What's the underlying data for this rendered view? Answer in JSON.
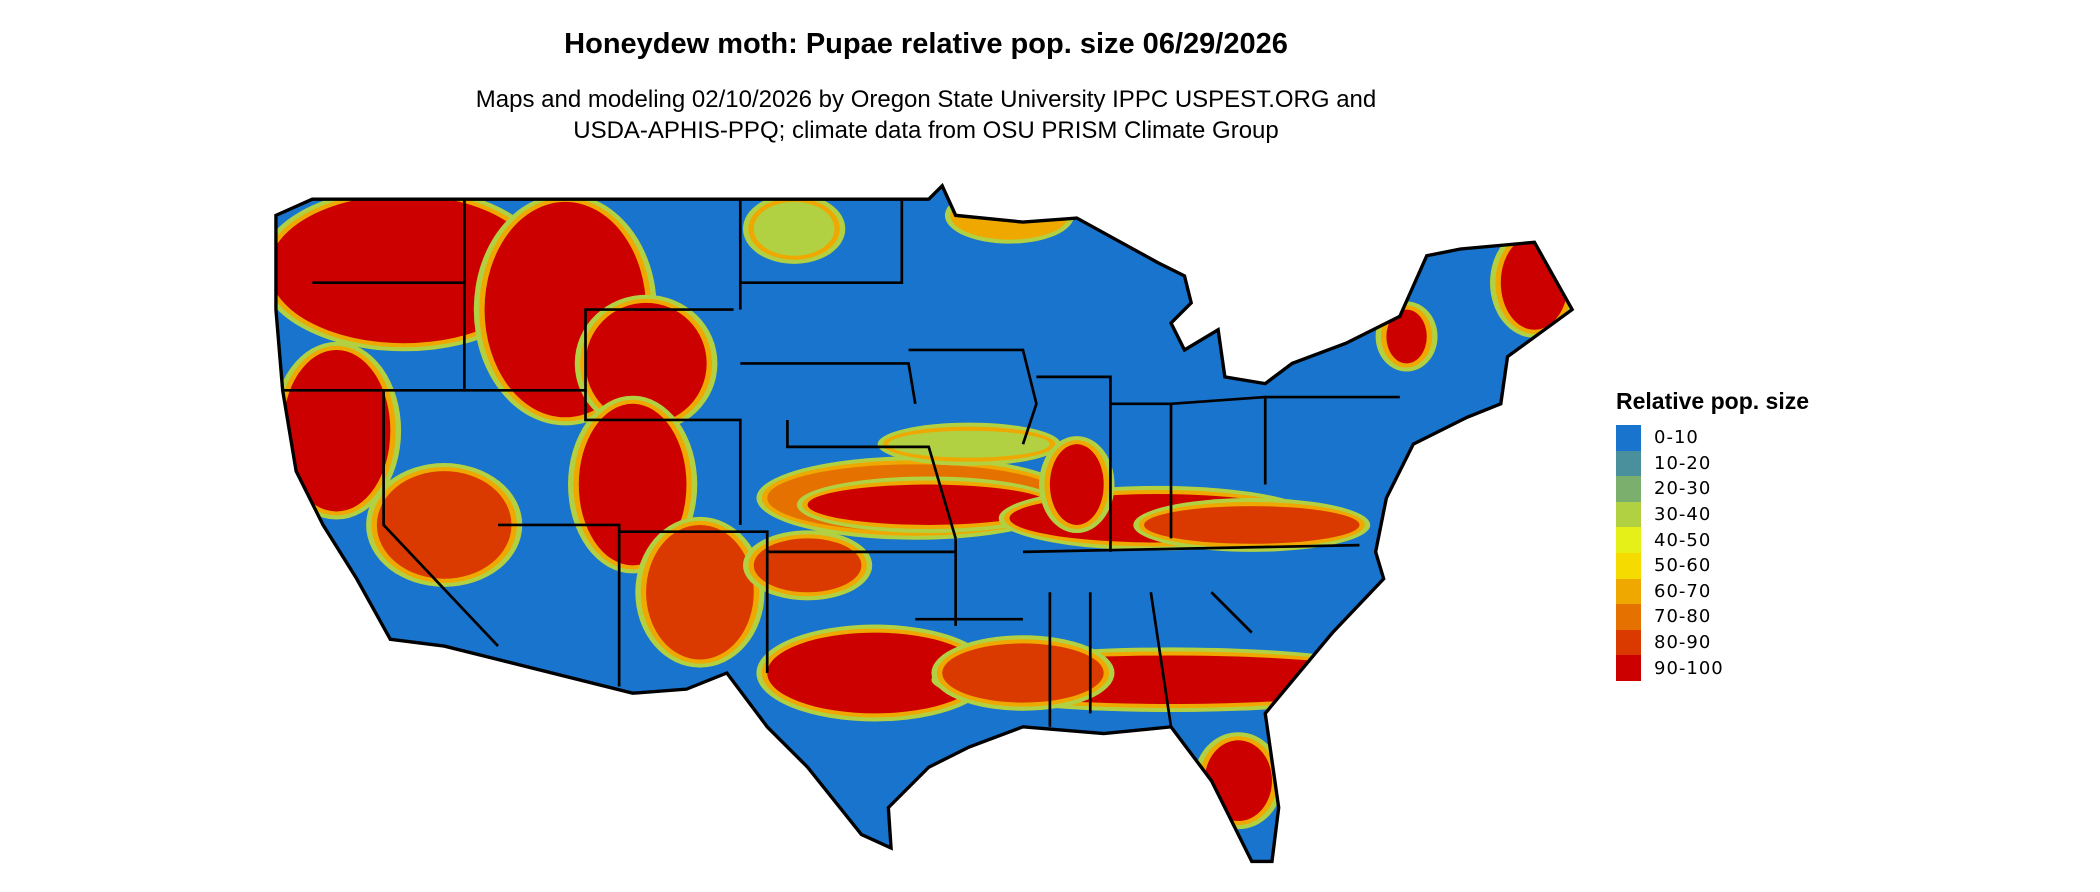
{
  "title": "Honeydew moth: Pupae relative pop. size 06/29/2026",
  "subtitle_line1": "Maps and modeling 02/10/2026 by Oregon State University IPPC USPEST.ORG and",
  "subtitle_line2": "USDA-APHIS-PPQ; climate data from OSU PRISM Climate Group",
  "legend": {
    "title": "Relative pop. size",
    "items": [
      {
        "label": "0-10",
        "color": "#1874CD"
      },
      {
        "label": "10-20",
        "color": "#4A8F9C"
      },
      {
        "label": "20-30",
        "color": "#7BAF6E"
      },
      {
        "label": "30-40",
        "color": "#B2D142"
      },
      {
        "label": "40-50",
        "color": "#E5F018"
      },
      {
        "label": "50-60",
        "color": "#F5DB00"
      },
      {
        "label": "60-70",
        "color": "#EEA800"
      },
      {
        "label": "70-80",
        "color": "#E57200"
      },
      {
        "label": "80-90",
        "color": "#DA3A00"
      },
      {
        "label": "90-100",
        "color": "#CD0000"
      }
    ]
  },
  "map": {
    "region": "contiguous United States",
    "boundaries": "state borders",
    "background_class": "0-10",
    "hotspot_class": "90-100"
  }
}
